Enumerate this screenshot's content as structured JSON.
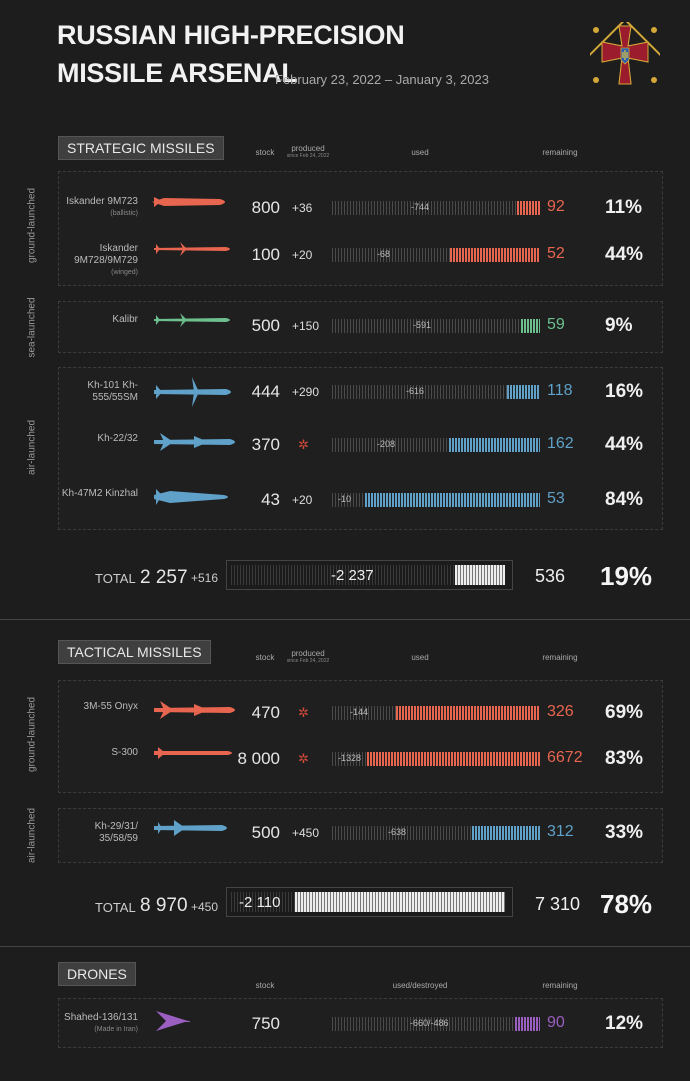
{
  "title": {
    "line1": "RUSSIAN HIGH-PRECISION",
    "line2": "MISSILE ARSENAL",
    "dates": "February 23, 2022 – January 3, 2023"
  },
  "emblem": {
    "icon": "ukraine-armed-forces-cross-emblem",
    "colors": [
      "#9b1c2c",
      "#d4a838"
    ]
  },
  "colors": {
    "ballistic": "#e8654f",
    "sea": "#6dc08e",
    "air": "#5fa1c8",
    "drone": "#9b5fc2",
    "star": "#d24a3a"
  },
  "headers": {
    "stock": "stock",
    "produced": "produced",
    "produced_sub": "since Feb 24, 2022",
    "used": "used",
    "remaining": "remaining",
    "used_destroyed": "used/destroyed"
  },
  "strategic": {
    "label": "STRATEGIC MISSILES",
    "groups": {
      "ground": "ground-launched",
      "sea": "sea-launched",
      "air": "air-launched"
    },
    "rows": [
      {
        "name": "Iskander 9M723",
        "sub": "(ballistic)",
        "stock": "800",
        "produced": "+36",
        "used": "-744",
        "remaining": "92",
        "pct": "11%",
        "color": "ballistic",
        "icon": "ballistic-missile-icon"
      },
      {
        "name": "Iskander 9M728/9M729",
        "sub": "(winged)",
        "stock": "100",
        "produced": "+20",
        "used": "-68",
        "remaining": "52",
        "pct": "44%",
        "color": "ballistic",
        "icon": "cruise-missile-icon"
      },
      {
        "name": "Kalibr",
        "sub": "",
        "stock": "500",
        "produced": "+150",
        "used": "-591",
        "remaining": "59",
        "pct": "9%",
        "color": "sea",
        "icon": "cruise-missile-icon"
      },
      {
        "name": "Kh-101 Kh-555/55SM",
        "sub": "",
        "stock": "444",
        "produced": "+290",
        "used": "-616",
        "remaining": "118",
        "pct": "16%",
        "color": "air",
        "icon": "air-launched-cruise-missile-icon"
      },
      {
        "name": "Kh-22/32",
        "sub": "",
        "stock": "370",
        "produced": "",
        "used": "-208",
        "remaining": "162",
        "pct": "44%",
        "color": "air",
        "icon": "anti-ship-missile-icon"
      },
      {
        "name": "Kh-47M2 Kinzhal",
        "sub": "",
        "stock": "43",
        "produced": "+20",
        "used": "-10",
        "remaining": "53",
        "pct": "84%",
        "color": "air",
        "icon": "hypersonic-missile-icon"
      }
    ],
    "total": {
      "label": "TOTAL",
      "stock": "2 257",
      "produced": "+516",
      "used": "-2 237",
      "remaining": "536",
      "pct": "19%"
    }
  },
  "tactical": {
    "label": "TACTICAL MISSILES",
    "groups": {
      "ground": "ground-launched",
      "air": "air-launched"
    },
    "rows": [
      {
        "name": "3M-55 Onyx",
        "sub": "",
        "stock": "470",
        "produced": "",
        "used": "-144",
        "remaining": "326",
        "pct": "69%",
        "color": "ballistic",
        "icon": "anti-ship-missile-icon"
      },
      {
        "name": "S-300",
        "sub": "",
        "stock": "8 000",
        "produced": "",
        "used": "-1328",
        "remaining": "6672",
        "pct": "83%",
        "color": "ballistic",
        "icon": "sam-missile-icon"
      },
      {
        "name": "Kh-29/31/ 35/58/59",
        "sub": "",
        "stock": "500",
        "produced": "+450",
        "used": "-638",
        "remaining": "312",
        "pct": "33%",
        "color": "air",
        "icon": "air-to-ground-missile-icon"
      }
    ],
    "total": {
      "label": "TOTAL",
      "stock": "8 970",
      "produced": "+450",
      "used": "-2 110",
      "remaining": "7 310",
      "pct": "78%"
    }
  },
  "drones": {
    "label": "DRONES",
    "rows": [
      {
        "name": "Shahed-136/131",
        "sub": "(Made in Iran)",
        "stock": "750",
        "produced": "",
        "used": "-660/-486",
        "remaining": "90",
        "pct": "12%",
        "color": "drone",
        "icon": "delta-wing-drone-icon"
      }
    ]
  },
  "chart_data": [
    {
      "type": "bar",
      "title": "STRATEGIC MISSILES",
      "categories": [
        "Iskander 9M723",
        "Iskander 9M728/9M729",
        "Kalibr",
        "Kh-101 Kh-555/55SM",
        "Kh-22/32",
        "Kh-47M2 Kinzhal"
      ],
      "series": [
        {
          "name": "stock",
          "values": [
            800,
            100,
            500,
            444,
            370,
            43
          ]
        },
        {
          "name": "produced",
          "values": [
            36,
            20,
            150,
            290,
            null,
            20
          ]
        },
        {
          "name": "used",
          "values": [
            -744,
            -68,
            -591,
            -616,
            -208,
            -10
          ]
        },
        {
          "name": "remaining",
          "values": [
            92,
            52,
            59,
            118,
            162,
            53
          ]
        },
        {
          "name": "remaining %",
          "values": [
            11,
            44,
            9,
            16,
            44,
            84
          ]
        }
      ],
      "total": {
        "stock": 2257,
        "produced": 516,
        "used": -2237,
        "remaining": 536,
        "pct": 19
      }
    },
    {
      "type": "bar",
      "title": "TACTICAL MISSILES",
      "categories": [
        "3M-55 Onyx",
        "S-300",
        "Kh-29/31/35/58/59"
      ],
      "series": [
        {
          "name": "stock",
          "values": [
            470,
            8000,
            500
          ]
        },
        {
          "name": "produced",
          "values": [
            null,
            null,
            450
          ]
        },
        {
          "name": "used",
          "values": [
            -144,
            -1328,
            -638
          ]
        },
        {
          "name": "remaining",
          "values": [
            326,
            6672,
            312
          ]
        },
        {
          "name": "remaining %",
          "values": [
            69,
            83,
            33
          ]
        }
      ],
      "total": {
        "stock": 8970,
        "produced": 450,
        "used": -2110,
        "remaining": 7310,
        "pct": 78
      }
    },
    {
      "type": "bar",
      "title": "DRONES",
      "categories": [
        "Shahed-136/131"
      ],
      "series": [
        {
          "name": "stock",
          "values": [
            750
          ]
        },
        {
          "name": "used/destroyed",
          "values": [
            "-660/-486"
          ]
        },
        {
          "name": "remaining",
          "values": [
            90
          ]
        },
        {
          "name": "remaining %",
          "values": [
            12
          ]
        }
      ]
    }
  ]
}
